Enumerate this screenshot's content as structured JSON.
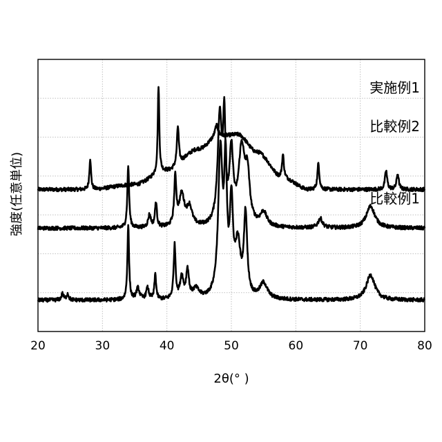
{
  "chart_data": {
    "type": "line",
    "xlabel": "2θ(°  )",
    "ylabel": "強度(任意単位)",
    "xlim": [
      20,
      80
    ],
    "xticks": [
      "20",
      "30",
      "40",
      "50",
      "60",
      "70",
      "80"
    ],
    "yticks_shown": false,
    "grid": "vertical and horizontal dotted",
    "line_color": "#000000",
    "series": [
      {
        "name": "実施例1",
        "baseline": 0.62,
        "background": [
          [
            20,
            0.0
          ],
          [
            28,
            0.0
          ],
          [
            35,
            0.08
          ],
          [
            40,
            0.3
          ],
          [
            45,
            0.65
          ],
          [
            48,
            0.85
          ],
          [
            51,
            0.88
          ],
          [
            54,
            0.6
          ],
          [
            58,
            0.18
          ],
          [
            62,
            0.0
          ],
          [
            80,
            0.0
          ]
        ],
        "peaks": [
          {
            "x": 28.1,
            "h": 0.5,
            "w": 0.15
          },
          {
            "x": 38.7,
            "h": 1.4,
            "w": 0.14
          },
          {
            "x": 41.7,
            "h": 0.62,
            "w": 0.18
          },
          {
            "x": 47.7,
            "h": 0.18,
            "w": 0.3
          },
          {
            "x": 58.0,
            "h": 0.38,
            "w": 0.18
          },
          {
            "x": 63.5,
            "h": 0.42,
            "w": 0.18
          },
          {
            "x": 74.0,
            "h": 0.3,
            "w": 0.2
          },
          {
            "x": 75.8,
            "h": 0.25,
            "w": 0.2
          }
        ]
      },
      {
        "name": "比較例2",
        "baseline": 0.0,
        "background": [
          [
            20,
            0.0
          ],
          [
            80,
            0.0
          ]
        ],
        "peaks": [
          {
            "x": 34.0,
            "h": 1.0,
            "w": 0.16
          },
          {
            "x": 37.3,
            "h": 0.2,
            "w": 0.25
          },
          {
            "x": 38.3,
            "h": 0.4,
            "w": 0.18
          },
          {
            "x": 41.3,
            "h": 0.75,
            "w": 0.2
          },
          {
            "x": 42.3,
            "h": 0.5,
            "w": 0.5
          },
          {
            "x": 43.5,
            "h": 0.3,
            "w": 0.5
          },
          {
            "x": 48.2,
            "h": 1.7,
            "w": 0.4
          },
          {
            "x": 48.9,
            "h": 1.5,
            "w": 0.22
          },
          {
            "x": 50.0,
            "h": 1.1,
            "w": 0.35
          },
          {
            "x": 51.6,
            "h": 1.2,
            "w": 0.6
          },
          {
            "x": 52.5,
            "h": 0.7,
            "w": 0.4
          },
          {
            "x": 55.0,
            "h": 0.22,
            "w": 0.6
          },
          {
            "x": 63.8,
            "h": 0.15,
            "w": 0.4
          },
          {
            "x": 71.6,
            "h": 0.35,
            "w": 0.8
          }
        ]
      },
      {
        "name": "比較例1",
        "baseline": -1.15,
        "background": [
          [
            20,
            0.0
          ],
          [
            80,
            0.0
          ]
        ],
        "peaks": [
          {
            "x": 23.8,
            "h": 0.1,
            "w": 0.2
          },
          {
            "x": 24.6,
            "h": 0.1,
            "w": 0.2
          },
          {
            "x": 34.0,
            "h": 1.2,
            "w": 0.15
          },
          {
            "x": 35.5,
            "h": 0.18,
            "w": 0.3
          },
          {
            "x": 37.0,
            "h": 0.18,
            "w": 0.25
          },
          {
            "x": 38.2,
            "h": 0.4,
            "w": 0.16
          },
          {
            "x": 41.2,
            "h": 0.85,
            "w": 0.18
          },
          {
            "x": 42.3,
            "h": 0.35,
            "w": 0.3
          },
          {
            "x": 43.2,
            "h": 0.45,
            "w": 0.25
          },
          {
            "x": 44.5,
            "h": 0.15,
            "w": 0.6
          },
          {
            "x": 48.3,
            "h": 2.3,
            "w": 0.4
          },
          {
            "x": 49.1,
            "h": 1.9,
            "w": 0.25
          },
          {
            "x": 50.0,
            "h": 1.4,
            "w": 0.3
          },
          {
            "x": 51.0,
            "h": 0.8,
            "w": 0.5
          },
          {
            "x": 52.2,
            "h": 1.3,
            "w": 0.3
          },
          {
            "x": 55.0,
            "h": 0.25,
            "w": 0.7
          },
          {
            "x": 71.6,
            "h": 0.4,
            "w": 0.8
          }
        ]
      }
    ]
  }
}
